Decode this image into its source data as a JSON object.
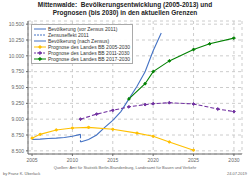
{
  "chart_data": {
    "type": "line",
    "title": "Mittenwalde:  Bevölkerungsentwicklung (2005-2013) und\nPrognosen (bis 2030) in den aktuellen Grenzen",
    "xlim": [
      2004.5,
      2031
    ],
    "ylim": [
      8450,
      10550
    ],
    "xticks": [
      2005,
      2010,
      2015,
      2020,
      2025,
      2030
    ],
    "yticks": [
      {
        "value": 8500,
        "label": "8.500"
      },
      {
        "value": 8750,
        "label": "8.750"
      },
      {
        "value": 9000,
        "label": "9.000"
      },
      {
        "value": 9250,
        "label": "9.250"
      },
      {
        "value": 9500,
        "label": "9.500"
      },
      {
        "value": 9750,
        "label": "9.750"
      },
      {
        "value": 10000,
        "label": "10.000"
      },
      {
        "value": 10250,
        "label": "10.250"
      },
      {
        "value": 10500,
        "label": "10.500"
      }
    ],
    "grid": true,
    "legend": "upper left",
    "series": [
      {
        "name": "Bevölkerung (vor Zensus 2011)",
        "color": "#4472c4",
        "line_style": "solid",
        "x": [
          2005,
          2006,
          2007,
          2008,
          2009,
          2010,
          2011
        ],
        "values": [
          8680,
          8685,
          8695,
          8700,
          8710,
          8730,
          8760
        ]
      },
      {
        "name": "Zensuseffekt 2011",
        "color": "#4472c4",
        "line_style": "dashed",
        "x": [
          2011,
          2011
        ],
        "values": [
          8760,
          8640
        ]
      },
      {
        "name": "Bevölkerung (nach Zensus)",
        "color": "#4472c4",
        "line_style": "solid",
        "x": [
          2011,
          2012,
          2013,
          2014,
          2015,
          2016,
          2017,
          2018,
          2019,
          2020,
          2021
        ],
        "values": [
          8640,
          8680,
          8750,
          8870,
          8980,
          9120,
          9320,
          9520,
          9750,
          10080,
          10360
        ]
      },
      {
        "name": "Prognose des Landes BB 2005-2030",
        "color": "#ffc000",
        "line_style": "solid",
        "marker": "circle",
        "x": [
          2005,
          2006,
          2008,
          2010,
          2012,
          2015,
          2018,
          2020,
          2022,
          2025
        ],
        "values": [
          8700,
          8760,
          8830,
          8860,
          8870,
          8840,
          8780,
          8730,
          8640,
          8510
        ]
      },
      {
        "name": "Prognose des Landes BB 2011-2030",
        "color": "#7030a0",
        "line_style": "dashed",
        "marker": "diamond",
        "x": [
          2011,
          2013,
          2015,
          2017,
          2019,
          2020,
          2022,
          2025,
          2028,
          2030
        ],
        "values": [
          9000,
          9080,
          9140,
          9195,
          9230,
          9245,
          9260,
          9240,
          9160,
          9120
        ]
      },
      {
        "name": "Prognose des Landes BB 2017-2030",
        "color": "#008000",
        "line_style": "solid",
        "marker": "diamond",
        "x": [
          2017,
          2019,
          2020,
          2022,
          2025,
          2027,
          2030
        ],
        "values": [
          9320,
          9560,
          9750,
          9920,
          10100,
          10190,
          10280
        ]
      }
    ],
    "annotations": [
      "by Franz K. Überlack",
      "Quellen: Amt für Statistik Berlin-Brandenburg, Landesamt für Bauen und Verkehr",
      "24.07.2019"
    ]
  }
}
